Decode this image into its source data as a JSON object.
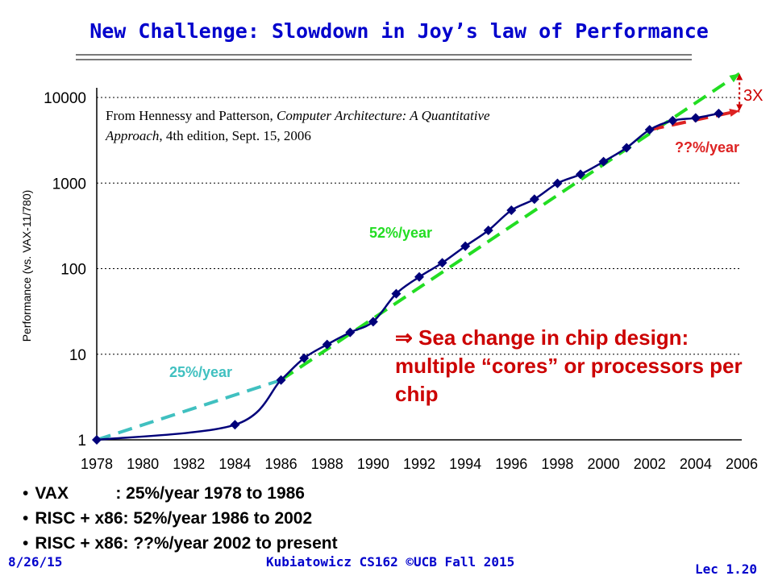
{
  "slide": {
    "title": "New Challenge: Slowdown in Joy’s law of Performance",
    "bullets": [
      "VAX          : 25%/year 1978 to 1986",
      "RISC + x86: 52%/year 1986 to 2002",
      "RISC + x86: ??%/year 2002 to present"
    ],
    "footer_left": "8/26/15",
    "footer_center": "Kubiatowicz CS162 ©UCB Fall 2015",
    "footer_right": "Lec 1.20",
    "sea_change_arrow": "⇒",
    "sea_change_text": "Sea change in chip design: multiple “cores” or processors per chip",
    "reference_line1": "From Hennessy and Patterson, ",
    "reference_book": "Computer Architecture: A Quantitative Approach",
    "reference_line2": ", 4th edition, Sept. 15, 2006"
  },
  "chart_data": {
    "type": "line",
    "ylabel": "Performance (vs. VAX-11/780)",
    "xlabel": "",
    "yscale": "log",
    "ylim": [
      1,
      10000
    ],
    "xlim": [
      1978,
      2006
    ],
    "x_ticks": [
      1978,
      1980,
      1982,
      1984,
      1986,
      1988,
      1990,
      1992,
      1994,
      1996,
      1998,
      2000,
      2002,
      2004,
      2006
    ],
    "y_ticks": [
      1,
      10,
      100,
      1000,
      10000
    ],
    "y_tick_labels": [
      "1",
      "10",
      "100",
      "1000",
      "10000"
    ],
    "grid": "horizontal dotted",
    "series": [
      {
        "color": "#00007a",
        "marker": "diamond",
        "x": [
          1978,
          1984,
          1986,
          1987,
          1988,
          1989,
          1990,
          1991,
          1992,
          1993,
          1994,
          1995,
          1996,
          1997,
          1998,
          1999,
          2000,
          2001,
          2002,
          2003,
          2004,
          2005
        ],
        "y": [
          1,
          1.5,
          5,
          9,
          13,
          18,
          24,
          51,
          80,
          117,
          183,
          280,
          481,
          649,
          993,
          1267,
          1779,
          2584,
          4195,
          5364,
          5764,
          6505
        ]
      }
    ],
    "trend_lines": [
      {
        "label": "25%/year",
        "color": "#40c0c0",
        "x": [
          1978,
          1986
        ],
        "y": [
          1,
          5
        ]
      },
      {
        "label": "52%/year",
        "color": "#22dd22",
        "x": [
          1986,
          2005.9
        ],
        "y": [
          5,
          19000
        ]
      },
      {
        "label": "??%/year",
        "color": "#dd2222",
        "x": [
          2002,
          2005.9
        ],
        "y": [
          4200,
          7000
        ]
      }
    ],
    "annotation_3x": "3X",
    "colors": {
      "axis": "#000000",
      "title": "#0000cc",
      "accent_red": "#cc0000"
    }
  }
}
